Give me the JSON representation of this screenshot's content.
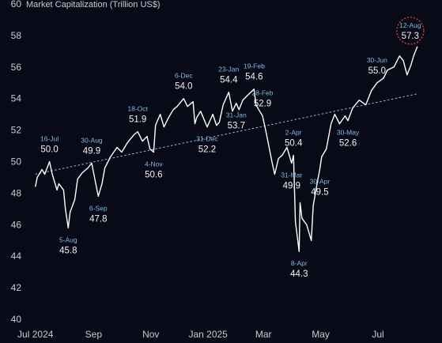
{
  "chart_data": {
    "type": "line",
    "title": "Market Capitalization (Trillion US$)",
    "ylim": [
      40,
      60
    ],
    "yticks": [
      40,
      42,
      44,
      46,
      48,
      50,
      52,
      54,
      56,
      58,
      60
    ],
    "xtick_labels": [
      "Jul 2024",
      "Sep",
      "Nov",
      "Jan 2025",
      "Mar",
      "May",
      "Jul"
    ],
    "grid": false,
    "colors": {
      "line": "#ffffff",
      "trend": "#9fb4e8",
      "annotation_date": "#7fb9e6",
      "highlight_circle": "#d83a3a"
    },
    "series": [
      {
        "values": [
          {
            "date": "2024-07-01",
            "y": 48.4
          },
          {
            "date": "2024-07-03",
            "y": 49.0
          },
          {
            "date": "2024-07-08",
            "y": 49.5
          },
          {
            "date": "2024-07-11",
            "y": 49.2
          },
          {
            "date": "2024-07-16",
            "y": 50.0
          },
          {
            "date": "2024-07-19",
            "y": 49.2
          },
          {
            "date": "2024-07-24",
            "y": 48.2
          },
          {
            "date": "2024-07-26",
            "y": 48.6
          },
          {
            "date": "2024-07-31",
            "y": 48.2
          },
          {
            "date": "2024-08-02",
            "y": 47.0
          },
          {
            "date": "2024-08-05",
            "y": 45.8
          },
          {
            "date": "2024-08-07",
            "y": 46.8
          },
          {
            "date": "2024-08-12",
            "y": 47.6
          },
          {
            "date": "2024-08-15",
            "y": 48.9
          },
          {
            "date": "2024-08-20",
            "y": 49.3
          },
          {
            "date": "2024-08-26",
            "y": 49.6
          },
          {
            "date": "2024-08-30",
            "y": 49.9
          },
          {
            "date": "2024-09-03",
            "y": 48.7
          },
          {
            "date": "2024-09-06",
            "y": 47.8
          },
          {
            "date": "2024-09-10",
            "y": 48.6
          },
          {
            "date": "2024-09-13",
            "y": 49.6
          },
          {
            "date": "2024-09-19",
            "y": 50.3
          },
          {
            "date": "2024-09-26",
            "y": 50.9
          },
          {
            "date": "2024-10-01",
            "y": 50.6
          },
          {
            "date": "2024-10-07",
            "y": 51.2
          },
          {
            "date": "2024-10-14",
            "y": 51.7
          },
          {
            "date": "2024-10-18",
            "y": 51.9
          },
          {
            "date": "2024-10-23",
            "y": 51.3
          },
          {
            "date": "2024-10-28",
            "y": 51.6
          },
          {
            "date": "2024-10-31",
            "y": 50.8
          },
          {
            "date": "2024-11-04",
            "y": 50.6
          },
          {
            "date": "2024-11-06",
            "y": 52.3
          },
          {
            "date": "2024-11-11",
            "y": 53.0
          },
          {
            "date": "2024-11-15",
            "y": 52.2
          },
          {
            "date": "2024-11-20",
            "y": 52.8
          },
          {
            "date": "2024-11-25",
            "y": 53.3
          },
          {
            "date": "2024-11-29",
            "y": 53.5
          },
          {
            "date": "2024-12-06",
            "y": 54.0
          },
          {
            "date": "2024-12-10",
            "y": 53.5
          },
          {
            "date": "2024-12-16",
            "y": 53.8
          },
          {
            "date": "2024-12-18",
            "y": 52.4
          },
          {
            "date": "2024-12-20",
            "y": 52.8
          },
          {
            "date": "2024-12-24",
            "y": 53.2
          },
          {
            "date": "2024-12-31",
            "y": 52.2
          },
          {
            "date": "2025-01-06",
            "y": 53.0
          },
          {
            "date": "2025-01-10",
            "y": 52.3
          },
          {
            "date": "2025-01-13",
            "y": 52.5
          },
          {
            "date": "2025-01-17",
            "y": 53.6
          },
          {
            "date": "2025-01-23",
            "y": 54.4
          },
          {
            "date": "2025-01-27",
            "y": 53.2
          },
          {
            "date": "2025-01-31",
            "y": 53.7
          },
          {
            "date": "2025-02-03",
            "y": 53.3
          },
          {
            "date": "2025-02-07",
            "y": 53.9
          },
          {
            "date": "2025-02-12",
            "y": 54.2
          },
          {
            "date": "2025-02-19",
            "y": 54.6
          },
          {
            "date": "2025-02-21",
            "y": 53.6
          },
          {
            "date": "2025-02-24",
            "y": 53.3
          },
          {
            "date": "2025-02-28",
            "y": 52.9
          },
          {
            "date": "2025-03-04",
            "y": 51.8
          },
          {
            "date": "2025-03-10",
            "y": 50.0
          },
          {
            "date": "2025-03-13",
            "y": 49.2
          },
          {
            "date": "2025-03-17",
            "y": 50.2
          },
          {
            "date": "2025-03-21",
            "y": 50.4
          },
          {
            "date": "2025-03-26",
            "y": 50.9
          },
          {
            "date": "2025-03-31",
            "y": 49.9
          },
          {
            "date": "2025-04-02",
            "y": 50.4
          },
          {
            "date": "2025-04-04",
            "y": 46.2
          },
          {
            "date": "2025-04-08",
            "y": 44.3
          },
          {
            "date": "2025-04-09",
            "y": 47.4
          },
          {
            "date": "2025-04-11",
            "y": 46.4
          },
          {
            "date": "2025-04-16",
            "y": 46.0
          },
          {
            "date": "2025-04-21",
            "y": 45.0
          },
          {
            "date": "2025-04-23",
            "y": 47.2
          },
          {
            "date": "2025-04-28",
            "y": 48.9
          },
          {
            "date": "2025-04-30",
            "y": 49.5
          },
          {
            "date": "2025-05-02",
            "y": 50.3
          },
          {
            "date": "2025-05-07",
            "y": 50.8
          },
          {
            "date": "2025-05-12",
            "y": 52.4
          },
          {
            "date": "2025-05-16",
            "y": 53.0
          },
          {
            "date": "2025-05-21",
            "y": 52.4
          },
          {
            "date": "2025-05-27",
            "y": 52.9
          },
          {
            "date": "2025-05-30",
            "y": 52.6
          },
          {
            "date": "2025-06-04",
            "y": 53.4
          },
          {
            "date": "2025-06-11",
            "y": 53.9
          },
          {
            "date": "2025-06-18",
            "y": 53.6
          },
          {
            "date": "2025-06-24",
            "y": 54.5
          },
          {
            "date": "2025-06-30",
            "y": 55.0
          },
          {
            "date": "2025-07-07",
            "y": 55.3
          },
          {
            "date": "2025-07-11",
            "y": 55.8
          },
          {
            "date": "2025-07-18",
            "y": 56.0
          },
          {
            "date": "2025-07-24",
            "y": 56.7
          },
          {
            "date": "2025-07-28",
            "y": 56.4
          },
          {
            "date": "2025-08-01",
            "y": 55.5
          },
          {
            "date": "2025-08-05",
            "y": 56.1
          },
          {
            "date": "2025-08-08",
            "y": 56.7
          },
          {
            "date": "2025-08-12",
            "y": 57.3
          }
        ]
      }
    ],
    "trendline": {
      "start": {
        "date": "2024-07-01",
        "y": 49.2
      },
      "end": {
        "date": "2025-08-12",
        "y": 54.3
      }
    },
    "annotations": [
      {
        "date_label": "16-Jul",
        "value": "50.0",
        "x": "2024-07-16",
        "y": 50.0,
        "label_pos": "above"
      },
      {
        "date_label": "5-Aug",
        "value": "45.8",
        "x": "2024-08-05",
        "y": 45.8,
        "label_pos": "below"
      },
      {
        "date_label": "30-Aug",
        "value": "49.9",
        "x": "2024-08-30",
        "y": 49.9,
        "label_pos": "above"
      },
      {
        "date_label": "6-Sep",
        "value": "47.8",
        "x": "2024-09-06",
        "y": 47.8,
        "label_pos": "below"
      },
      {
        "date_label": "18-Oct",
        "value": "51.9",
        "x": "2024-10-18",
        "y": 51.9,
        "label_pos": "above"
      },
      {
        "date_label": "4-Nov",
        "value": "50.6",
        "x": "2024-11-04",
        "y": 50.6,
        "label_pos": "below"
      },
      {
        "date_label": "6-Dec",
        "value": "54.0",
        "x": "2024-12-06",
        "y": 54.0,
        "label_pos": "above"
      },
      {
        "date_label": "31-Dec",
        "value": "52.2",
        "x": "2024-12-31",
        "y": 52.2,
        "label_pos": "below"
      },
      {
        "date_label": "23-Jan",
        "value": "54.4",
        "x": "2025-01-23",
        "y": 54.4,
        "label_pos": "above"
      },
      {
        "date_label": "31-Jan",
        "value": "53.7",
        "x": "2025-01-31",
        "y": 53.7,
        "label_pos": "below"
      },
      {
        "date_label": "19-Feb",
        "value": "54.6",
        "x": "2025-02-19",
        "y": 54.6,
        "label_pos": "above"
      },
      {
        "date_label": "28-Feb",
        "value": "52.9",
        "x": "2025-02-28",
        "y": 52.9,
        "label_pos": "above"
      },
      {
        "date_label": "31-Mar",
        "value": "49.9",
        "x": "2025-03-31",
        "y": 49.9,
        "label_pos": "below"
      },
      {
        "date_label": "2-Apr",
        "value": "50.4",
        "x": "2025-04-02",
        "y": 50.4,
        "label_pos": "above"
      },
      {
        "date_label": "8-Apr",
        "value": "44.3",
        "x": "2025-04-08",
        "y": 44.3,
        "label_pos": "below"
      },
      {
        "date_label": "30-Apr",
        "value": "49.5",
        "x": "2025-04-30",
        "y": 49.5,
        "label_pos": "below"
      },
      {
        "date_label": "30-May",
        "value": "52.6",
        "x": "2025-05-30",
        "y": 52.6,
        "label_pos": "below"
      },
      {
        "date_label": "30-Jun",
        "value": "55.0",
        "x": "2025-06-30",
        "y": 55.0,
        "label_pos": "above"
      },
      {
        "date_label": "12-Aug",
        "value": "57.3",
        "x": "2025-08-12",
        "y": 57.3,
        "label_pos": "circled"
      }
    ]
  }
}
